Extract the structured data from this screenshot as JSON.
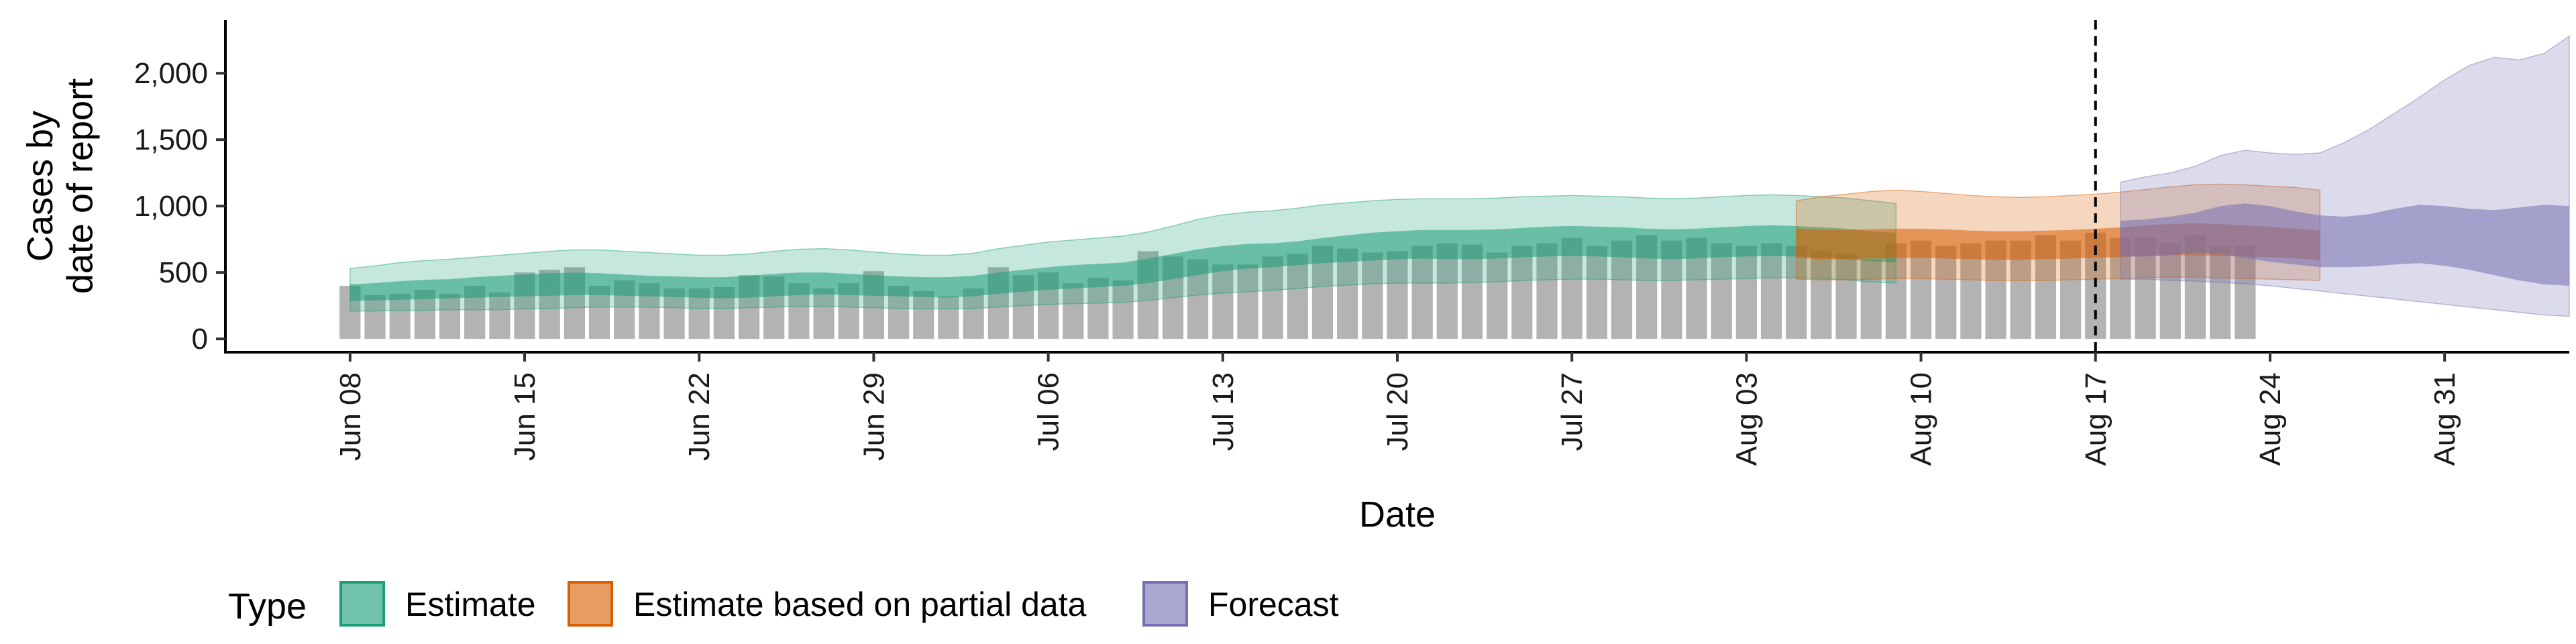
{
  "chart_data": {
    "type": "area",
    "xlabel": "Date",
    "ylabel_lines": [
      "Cases by",
      "date of report"
    ],
    "x_ticks": [
      "2020-06-08",
      "2020-06-15",
      "2020-06-22",
      "2020-06-29",
      "2020-07-06",
      "2020-07-13",
      "2020-07-20",
      "2020-07-27",
      "2020-08-03",
      "2020-08-10",
      "2020-08-17",
      "2020-08-24",
      "2020-08-31"
    ],
    "x_tick_labels": [
      "Jun 08",
      "Jun 15",
      "Jun 22",
      "Jun 29",
      "Jul 06",
      "Jul 13",
      "Jul 20",
      "Jul 27",
      "Aug 03",
      "Aug 10",
      "Aug 17",
      "Aug 24",
      "Aug 31"
    ],
    "xlim": [
      "2020-06-03",
      "2020-09-05"
    ],
    "y_ticks": [
      0,
      500,
      1000,
      1500,
      2000
    ],
    "y_tick_labels": [
      "0",
      "500",
      "1,000",
      "1,500",
      "2,000"
    ],
    "ylim": [
      -100,
      2400
    ],
    "forecast_start": "2020-08-17",
    "grid": false,
    "legend": {
      "position": "bottom-left",
      "title": "Type",
      "items": [
        {
          "label": "Estimate",
          "fill": "#1b9e77",
          "outline": "#1b9e77"
        },
        {
          "label": "Estimate based on partial data",
          "fill": "#d95f02",
          "outline": "#d95f02"
        },
        {
          "label": "Forecast",
          "fill": "#7570b3",
          "outline": "#7570b3"
        }
      ]
    },
    "reported_cases": {
      "start": "2020-06-08",
      "color": "#b3b3b3",
      "values": [
        400,
        330,
        340,
        370,
        340,
        400,
        350,
        500,
        520,
        540,
        400,
        440,
        420,
        380,
        380,
        390,
        480,
        470,
        420,
        380,
        420,
        510,
        400,
        360,
        320,
        380,
        540,
        480,
        500,
        420,
        460,
        440,
        660,
        620,
        600,
        560,
        560,
        620,
        640,
        700,
        680,
        650,
        660,
        700,
        720,
        710,
        650,
        700,
        720,
        760,
        700,
        740,
        780,
        740,
        760,
        720,
        700,
        720,
        700,
        660,
        640,
        600,
        720,
        740,
        700,
        720,
        740,
        740,
        780,
        740,
        800,
        760,
        760,
        720,
        780,
        700,
        700
      ]
    },
    "series": [
      {
        "name": "Estimate",
        "color": "#1b9e77",
        "start": "2020-06-08",
        "lower90": [
          210,
          210,
          215,
          215,
          220,
          220,
          220,
          225,
          230,
          235,
          240,
          240,
          240,
          235,
          230,
          230,
          235,
          240,
          245,
          245,
          240,
          235,
          230,
          225,
          225,
          230,
          240,
          250,
          260,
          265,
          270,
          275,
          290,
          310,
          330,
          345,
          355,
          365,
          380,
          395,
          405,
          415,
          420,
          420,
          420,
          425,
          430,
          440,
          445,
          450,
          450,
          445,
          440,
          440,
          445,
          450,
          455,
          460,
          460,
          455,
          445,
          430,
          420
        ],
        "lower50": [
          285,
          290,
          295,
          300,
          305,
          310,
          315,
          320,
          325,
          330,
          330,
          325,
          320,
          315,
          310,
          305,
          310,
          320,
          330,
          335,
          330,
          325,
          320,
          315,
          310,
          320,
          340,
          355,
          370,
          380,
          390,
          400,
          420,
          450,
          480,
          510,
          530,
          540,
          555,
          570,
          580,
          590,
          600,
          605,
          600,
          600,
          605,
          615,
          620,
          625,
          620,
          615,
          605,
          600,
          605,
          615,
          620,
          625,
          620,
          610,
          600,
          585,
          575
        ],
        "upper50": [
          410,
          420,
          435,
          445,
          450,
          465,
          475,
          485,
          495,
          500,
          495,
          485,
          475,
          470,
          465,
          465,
          475,
          490,
          500,
          500,
          490,
          480,
          470,
          465,
          465,
          475,
          500,
          520,
          540,
          555,
          565,
          575,
          605,
          640,
          675,
          700,
          715,
          720,
          735,
          760,
          780,
          800,
          810,
          820,
          820,
          820,
          825,
          835,
          845,
          850,
          845,
          840,
          830,
          825,
          830,
          840,
          850,
          855,
          850,
          840,
          830,
          810,
          800
        ],
        "upper90": [
          530,
          550,
          575,
          590,
          600,
          615,
          630,
          645,
          660,
          670,
          670,
          660,
          650,
          640,
          630,
          630,
          640,
          660,
          675,
          680,
          670,
          655,
          640,
          630,
          630,
          645,
          680,
          705,
          730,
          745,
          760,
          775,
          805,
          850,
          900,
          935,
          955,
          965,
          985,
          1010,
          1025,
          1040,
          1050,
          1055,
          1055,
          1055,
          1060,
          1070,
          1075,
          1080,
          1075,
          1070,
          1060,
          1055,
          1060,
          1070,
          1080,
          1085,
          1080,
          1070,
          1060,
          1040,
          1020
        ]
      },
      {
        "name": "Estimate based on partial data",
        "color": "#d95f02",
        "start": "2020-08-05",
        "lower90": [
          450,
          445,
          445,
          450,
          455,
          455,
          450,
          445,
          440,
          440,
          440,
          445,
          450,
          455,
          460,
          465,
          465,
          460,
          455,
          450,
          445,
          440
        ],
        "lower50": [
          610,
          600,
          600,
          605,
          610,
          610,
          605,
          600,
          595,
          595,
          600,
          605,
          610,
          615,
          625,
          630,
          630,
          625,
          620,
          615,
          605,
          595
        ],
        "upper50": [
          830,
          820,
          820,
          825,
          830,
          830,
          825,
          815,
          810,
          810,
          815,
          820,
          830,
          840,
          855,
          865,
          870,
          865,
          855,
          845,
          830,
          815
        ],
        "upper90": [
          1040,
          1070,
          1090,
          1110,
          1120,
          1110,
          1095,
          1080,
          1070,
          1065,
          1070,
          1080,
          1090,
          1105,
          1125,
          1145,
          1160,
          1165,
          1160,
          1150,
          1140,
          1120
        ]
      },
      {
        "name": "Forecast",
        "color": "#7570b3",
        "start": "2020-08-18",
        "lower90": [
          450,
          450,
          440,
          435,
          425,
          415,
          400,
          380,
          360,
          340,
          320,
          300,
          280,
          260,
          240,
          220,
          200,
          180,
          170
        ],
        "lower50": [
          620,
          620,
          630,
          650,
          640,
          610,
          580,
          560,
          540,
          540,
          545,
          560,
          570,
          550,
          520,
          480,
          440,
          410,
          400
        ],
        "upper50": [
          890,
          900,
          920,
          950,
          1000,
          1020,
          1000,
          960,
          930,
          920,
          940,
          980,
          1010,
          1000,
          980,
          970,
          990,
          1010,
          1000
        ],
        "upper90": [
          1180,
          1220,
          1250,
          1300,
          1380,
          1420,
          1400,
          1390,
          1400,
          1480,
          1580,
          1700,
          1820,
          1950,
          2060,
          2120,
          2100,
          2150,
          2280
        ]
      }
    ]
  }
}
